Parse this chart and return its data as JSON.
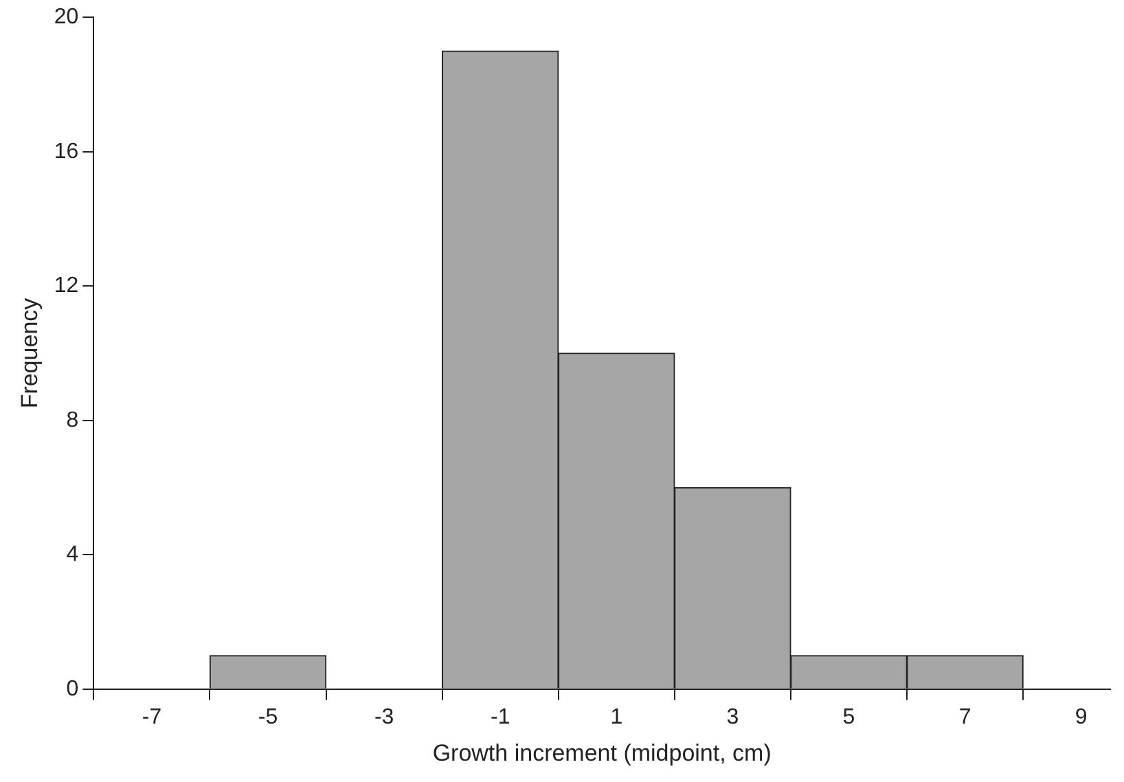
{
  "chart_data": {
    "type": "histogram",
    "xlabel": "Growth increment (midpoint, cm)",
    "ylabel": "Frequency",
    "bins": [
      -8,
      -6,
      -4,
      -2,
      0,
      2,
      4,
      6,
      8
    ],
    "values": [
      0,
      1,
      0,
      19,
      10,
      6,
      1,
      1
    ],
    "color": "#a6a6a6",
    "xlim": [
      -8,
      9.5
    ],
    "xticks": [
      -7,
      -5,
      -3,
      -1,
      1,
      3,
      5,
      7,
      9
    ],
    "ylim": [
      0,
      20
    ],
    "yticks": [
      0,
      4,
      8,
      12,
      16,
      20
    ],
    "grid": false,
    "legend": false
  }
}
